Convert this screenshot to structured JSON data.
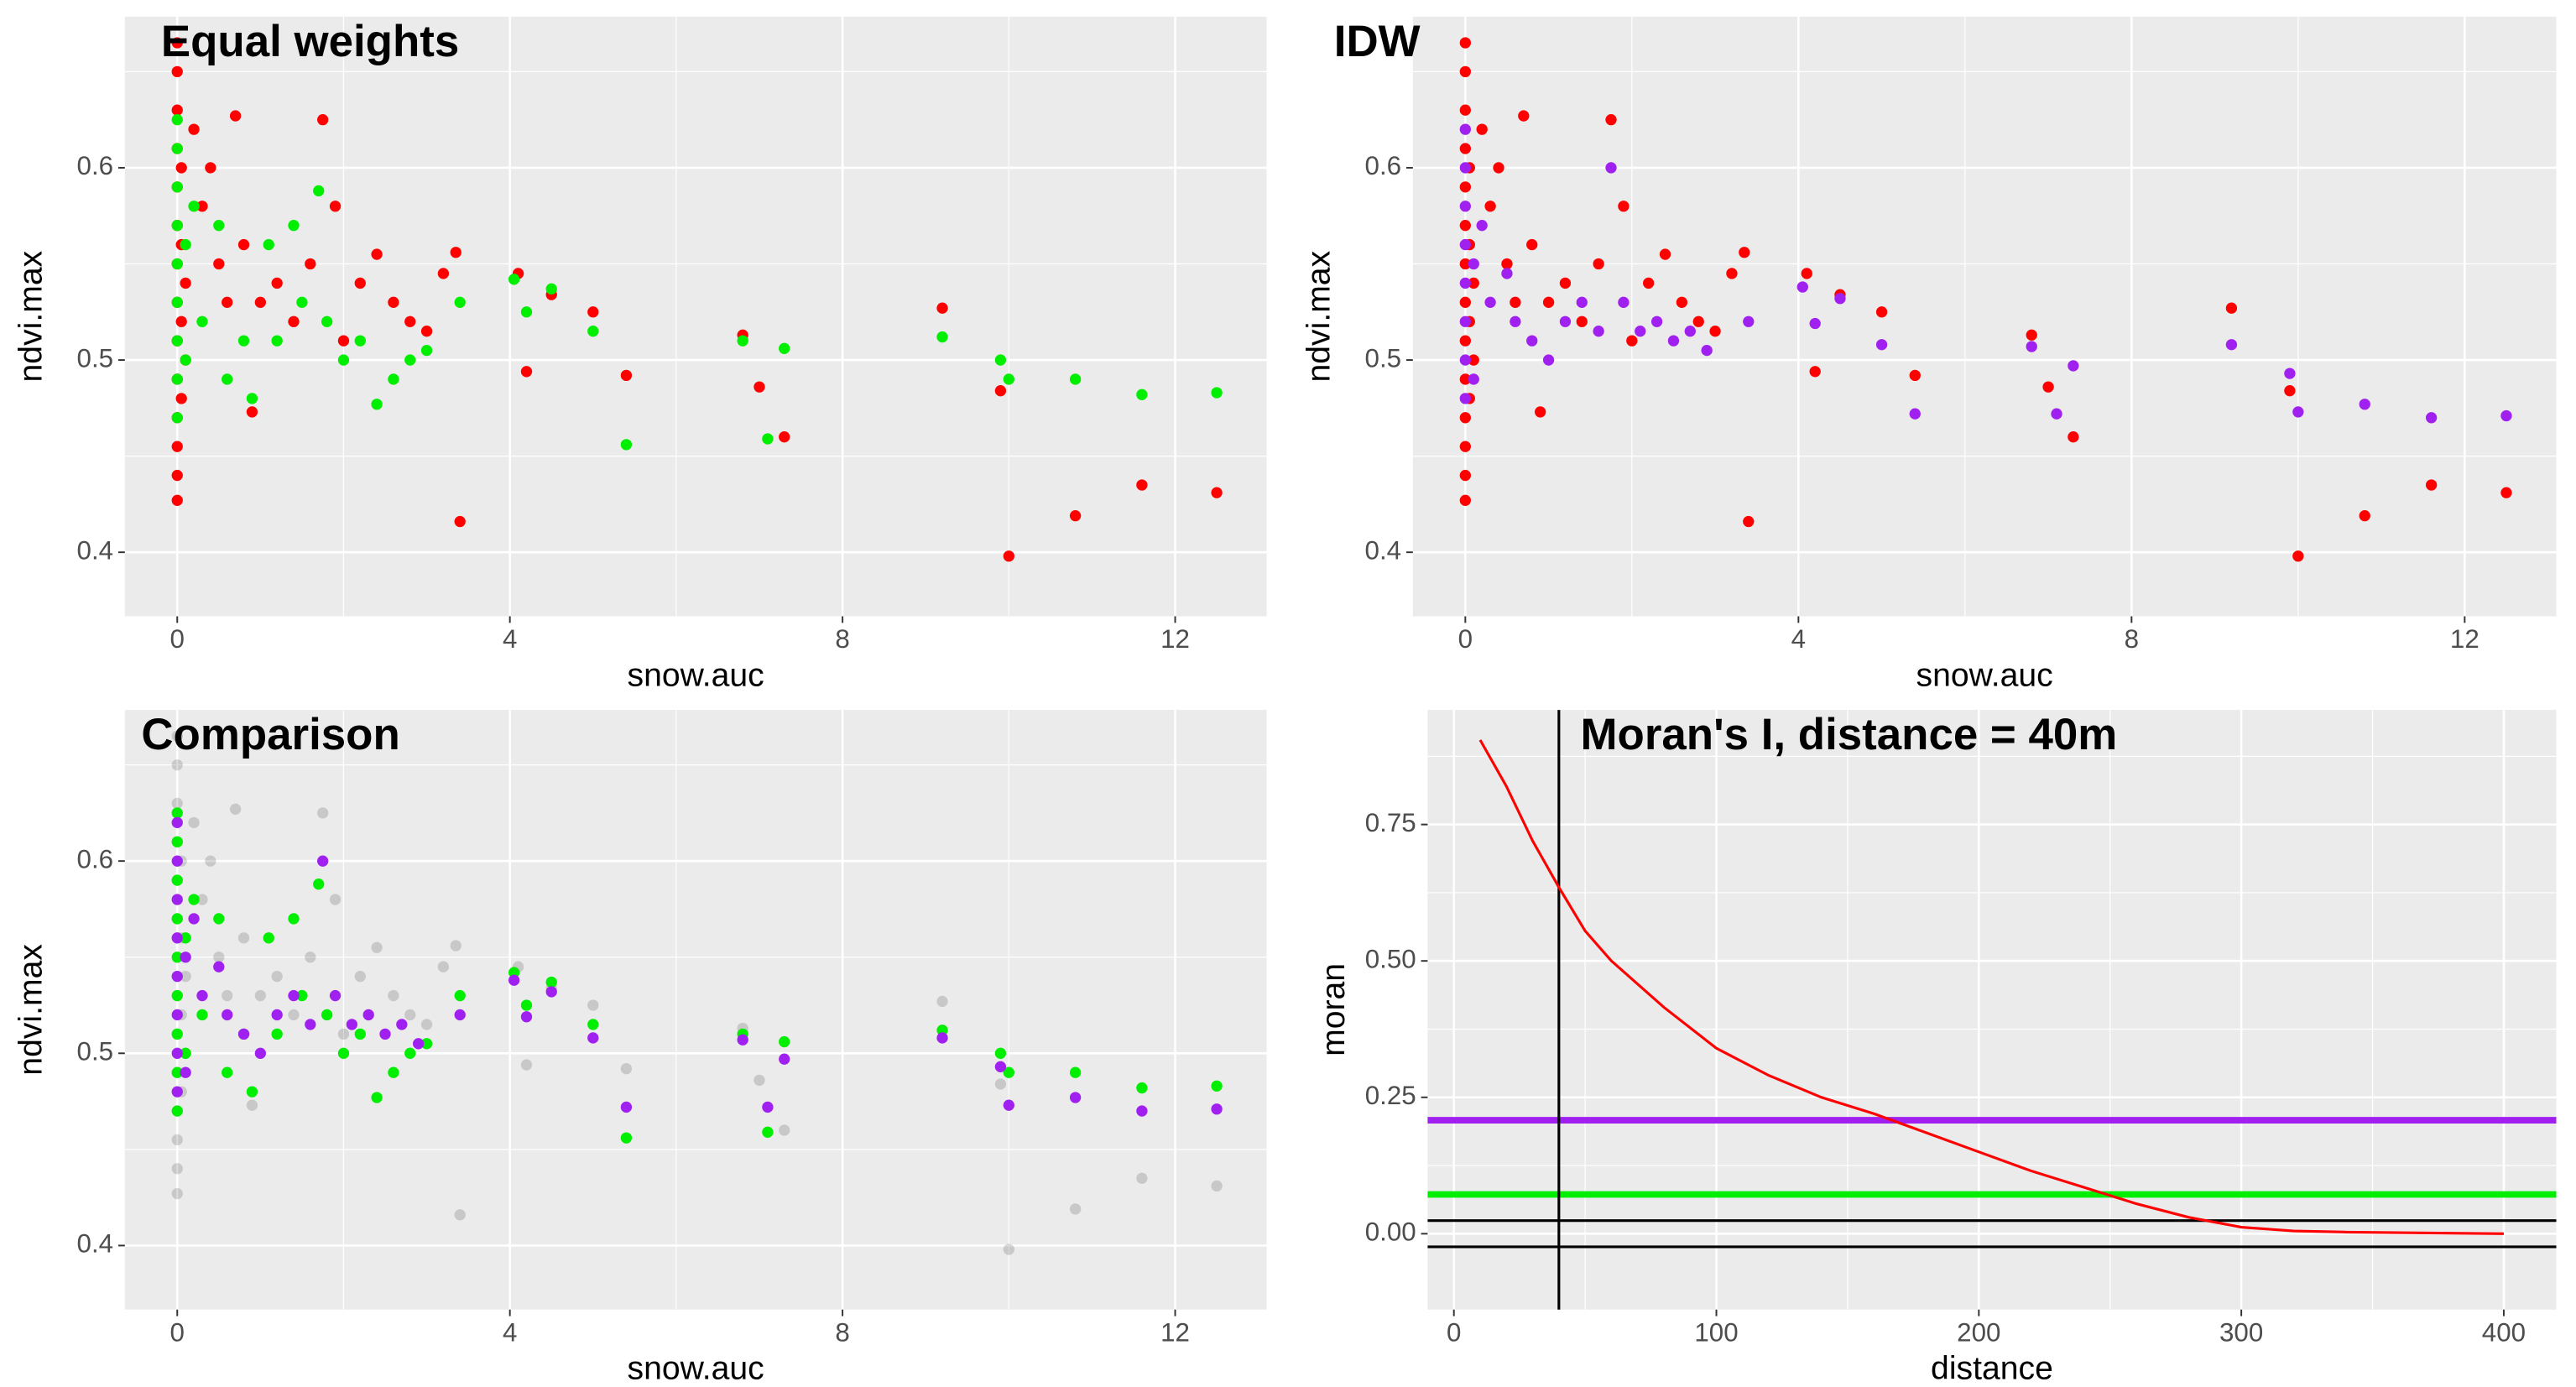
{
  "chart_data": [
    {
      "type": "scatter",
      "title": "Equal weights",
      "x_label": "snow.auc",
      "y_label": "ndvi.max",
      "xlim": [
        -0.63,
        13.1
      ],
      "ylim": [
        0.3667,
        0.6786
      ],
      "xticks": [
        0,
        4,
        8,
        12
      ],
      "yticks": [
        0.4,
        0.5,
        0.6
      ],
      "xminor": [
        2,
        6,
        10
      ],
      "yminor": [
        0.45,
        0.55,
        0.65
      ],
      "grid": true,
      "series": [
        {
          "color": "#ff0000",
          "x": [
            0,
            0,
            0,
            0,
            0,
            0,
            0,
            0,
            0,
            0,
            0,
            0,
            0,
            0,
            0.05,
            0.05,
            0.05,
            0.05,
            0.1,
            0.1,
            0.2,
            0.3,
            0.4,
            0.5,
            0.6,
            0.7,
            0.8,
            0.9,
            1.0,
            1.2,
            1.4,
            1.6,
            1.75,
            1.9,
            2.0,
            2.2,
            2.4,
            2.6,
            2.8,
            3.0,
            3.2,
            3.35,
            3.4,
            4.1,
            4.2,
            4.5,
            5.0,
            5.4,
            6.8,
            7.0,
            7.3,
            9.2,
            9.9,
            10.0,
            10.8,
            11.6,
            12.5
          ],
          "values": [
            0.427,
            0.44,
            0.455,
            0.47,
            0.49,
            0.51,
            0.53,
            0.55,
            0.57,
            0.59,
            0.61,
            0.63,
            0.65,
            0.665,
            0.48,
            0.52,
            0.56,
            0.6,
            0.5,
            0.54,
            0.62,
            0.58,
            0.6,
            0.55,
            0.53,
            0.627,
            0.56,
            0.473,
            0.53,
            0.54,
            0.52,
            0.55,
            0.625,
            0.58,
            0.51,
            0.54,
            0.555,
            0.53,
            0.52,
            0.515,
            0.545,
            0.556,
            0.416,
            0.545,
            0.494,
            0.534,
            0.525,
            0.492,
            0.513,
            0.486,
            0.46,
            0.527,
            0.484,
            0.398,
            0.419,
            0.435,
            0.431
          ]
        },
        {
          "color": "#00ee00",
          "x": [
            0,
            0,
            0,
            0,
            0,
            0,
            0,
            0,
            0,
            0.1,
            0.1,
            0.2,
            0.3,
            0.5,
            0.6,
            0.8,
            0.9,
            1.1,
            1.2,
            1.4,
            1.5,
            1.7,
            1.8,
            2.0,
            2.2,
            2.4,
            2.6,
            2.8,
            3.0,
            3.4,
            4.05,
            4.2,
            4.5,
            5.0,
            5.4,
            6.8,
            7.1,
            7.3,
            9.2,
            9.9,
            10.0,
            10.8,
            11.6,
            12.5
          ],
          "values": [
            0.47,
            0.49,
            0.51,
            0.53,
            0.55,
            0.57,
            0.59,
            0.61,
            0.625,
            0.5,
            0.56,
            0.58,
            0.52,
            0.57,
            0.49,
            0.51,
            0.48,
            0.56,
            0.51,
            0.57,
            0.53,
            0.588,
            0.52,
            0.5,
            0.51,
            0.477,
            0.49,
            0.5,
            0.505,
            0.53,
            0.542,
            0.525,
            0.537,
            0.515,
            0.456,
            0.51,
            0.459,
            0.506,
            0.512,
            0.5,
            0.49,
            0.49,
            0.482,
            0.483
          ]
        }
      ]
    },
    {
      "type": "scatter",
      "title": "IDW",
      "x_label": "snow.auc",
      "y_label": "ndvi.max",
      "xlim": [
        -0.63,
        13.1
      ],
      "ylim": [
        0.3667,
        0.6786
      ],
      "xticks": [
        0,
        4,
        8,
        12
      ],
      "yticks": [
        0.4,
        0.5,
        0.6
      ],
      "xminor": [
        2,
        6,
        10
      ],
      "yminor": [
        0.45,
        0.55,
        0.65
      ],
      "grid": true,
      "series": [
        {
          "color": "#ff0000",
          "x": [
            0,
            0,
            0,
            0,
            0,
            0,
            0,
            0,
            0,
            0,
            0,
            0,
            0,
            0,
            0.05,
            0.05,
            0.05,
            0.05,
            0.1,
            0.1,
            0.2,
            0.3,
            0.4,
            0.5,
            0.6,
            0.7,
            0.8,
            0.9,
            1.0,
            1.2,
            1.4,
            1.6,
            1.75,
            1.9,
            2.0,
            2.2,
            2.4,
            2.6,
            2.8,
            3.0,
            3.2,
            3.35,
            3.4,
            4.1,
            4.2,
            4.5,
            5.0,
            5.4,
            6.8,
            7.0,
            7.3,
            9.2,
            9.9,
            10.0,
            10.8,
            11.6,
            12.5
          ],
          "values": [
            0.427,
            0.44,
            0.455,
            0.47,
            0.49,
            0.51,
            0.53,
            0.55,
            0.57,
            0.59,
            0.61,
            0.63,
            0.65,
            0.665,
            0.48,
            0.52,
            0.56,
            0.6,
            0.5,
            0.54,
            0.62,
            0.58,
            0.6,
            0.55,
            0.53,
            0.627,
            0.56,
            0.473,
            0.53,
            0.54,
            0.52,
            0.55,
            0.625,
            0.58,
            0.51,
            0.54,
            0.555,
            0.53,
            0.52,
            0.515,
            0.545,
            0.556,
            0.416,
            0.545,
            0.494,
            0.534,
            0.525,
            0.492,
            0.513,
            0.486,
            0.46,
            0.527,
            0.484,
            0.398,
            0.419,
            0.435,
            0.431
          ]
        },
        {
          "color": "#a020f0",
          "x": [
            0,
            0,
            0,
            0,
            0,
            0,
            0,
            0,
            0.1,
            0.1,
            0.2,
            0.3,
            0.5,
            0.6,
            0.8,
            1.0,
            1.2,
            1.4,
            1.6,
            1.75,
            1.9,
            2.1,
            2.3,
            2.5,
            2.7,
            2.9,
            3.4,
            4.05,
            4.2,
            4.5,
            5.0,
            5.4,
            6.8,
            7.1,
            7.3,
            9.2,
            9.9,
            10.0,
            10.8,
            11.6,
            12.5
          ],
          "values": [
            0.48,
            0.5,
            0.52,
            0.54,
            0.56,
            0.58,
            0.6,
            0.62,
            0.49,
            0.55,
            0.57,
            0.53,
            0.545,
            0.52,
            0.51,
            0.5,
            0.52,
            0.53,
            0.515,
            0.6,
            0.53,
            0.515,
            0.52,
            0.51,
            0.515,
            0.505,
            0.52,
            0.538,
            0.519,
            0.532,
            0.508,
            0.472,
            0.507,
            0.472,
            0.497,
            0.508,
            0.493,
            0.473,
            0.477,
            0.47,
            0.471
          ]
        }
      ]
    },
    {
      "type": "scatter",
      "title": "Comparison",
      "x_label": "snow.auc",
      "y_label": "ndvi.max",
      "xlim": [
        -0.63,
        13.1
      ],
      "ylim": [
        0.3667,
        0.6786
      ],
      "xticks": [
        0,
        4,
        8,
        12
      ],
      "yticks": [
        0.4,
        0.5,
        0.6
      ],
      "xminor": [
        2,
        6,
        10
      ],
      "yminor": [
        0.45,
        0.55,
        0.65
      ],
      "grid": true,
      "series": [
        {
          "color": "#000000",
          "opacity": 0.15,
          "x": [
            0,
            0,
            0,
            0,
            0,
            0,
            0,
            0,
            0,
            0,
            0,
            0,
            0,
            0,
            0.05,
            0.05,
            0.05,
            0.05,
            0.1,
            0.1,
            0.2,
            0.3,
            0.4,
            0.5,
            0.6,
            0.7,
            0.8,
            0.9,
            1.0,
            1.2,
            1.4,
            1.6,
            1.75,
            1.9,
            2.0,
            2.2,
            2.4,
            2.6,
            2.8,
            3.0,
            3.2,
            3.35,
            3.4,
            4.1,
            4.2,
            4.5,
            5.0,
            5.4,
            6.8,
            7.0,
            7.3,
            9.2,
            9.9,
            10.0,
            10.8,
            11.6,
            12.5
          ],
          "values": [
            0.427,
            0.44,
            0.455,
            0.47,
            0.49,
            0.51,
            0.53,
            0.55,
            0.57,
            0.59,
            0.61,
            0.63,
            0.65,
            0.665,
            0.48,
            0.52,
            0.56,
            0.6,
            0.5,
            0.54,
            0.62,
            0.58,
            0.6,
            0.55,
            0.53,
            0.627,
            0.56,
            0.473,
            0.53,
            0.54,
            0.52,
            0.55,
            0.625,
            0.58,
            0.51,
            0.54,
            0.555,
            0.53,
            0.52,
            0.515,
            0.545,
            0.556,
            0.416,
            0.545,
            0.494,
            0.534,
            0.525,
            0.492,
            0.513,
            0.486,
            0.46,
            0.527,
            0.484,
            0.398,
            0.419,
            0.435,
            0.431
          ]
        },
        {
          "color": "#00ee00",
          "x": [
            0,
            0,
            0,
            0,
            0,
            0,
            0,
            0,
            0,
            0.1,
            0.1,
            0.2,
            0.3,
            0.5,
            0.6,
            0.8,
            0.9,
            1.1,
            1.2,
            1.4,
            1.5,
            1.7,
            1.8,
            2.0,
            2.2,
            2.4,
            2.6,
            2.8,
            3.0,
            3.4,
            4.05,
            4.2,
            4.5,
            5.0,
            5.4,
            6.8,
            7.1,
            7.3,
            9.2,
            9.9,
            10.0,
            10.8,
            11.6,
            12.5
          ],
          "values": [
            0.47,
            0.49,
            0.51,
            0.53,
            0.55,
            0.57,
            0.59,
            0.61,
            0.625,
            0.5,
            0.56,
            0.58,
            0.52,
            0.57,
            0.49,
            0.51,
            0.48,
            0.56,
            0.51,
            0.57,
            0.53,
            0.588,
            0.52,
            0.5,
            0.51,
            0.477,
            0.49,
            0.5,
            0.505,
            0.53,
            0.542,
            0.525,
            0.537,
            0.515,
            0.456,
            0.51,
            0.459,
            0.506,
            0.512,
            0.5,
            0.49,
            0.49,
            0.482,
            0.483
          ]
        },
        {
          "color": "#a020f0",
          "x": [
            0,
            0,
            0,
            0,
            0,
            0,
            0,
            0,
            0.1,
            0.1,
            0.2,
            0.3,
            0.5,
            0.6,
            0.8,
            1.0,
            1.2,
            1.4,
            1.6,
            1.75,
            1.9,
            2.1,
            2.3,
            2.5,
            2.7,
            2.9,
            3.4,
            4.05,
            4.2,
            4.5,
            5.0,
            5.4,
            6.8,
            7.1,
            7.3,
            9.2,
            9.9,
            10.0,
            10.8,
            11.6,
            12.5
          ],
          "values": [
            0.48,
            0.5,
            0.52,
            0.54,
            0.56,
            0.58,
            0.6,
            0.62,
            0.49,
            0.55,
            0.57,
            0.53,
            0.545,
            0.52,
            0.51,
            0.5,
            0.52,
            0.53,
            0.515,
            0.6,
            0.53,
            0.515,
            0.52,
            0.51,
            0.515,
            0.505,
            0.52,
            0.538,
            0.519,
            0.532,
            0.508,
            0.472,
            0.507,
            0.472,
            0.497,
            0.508,
            0.493,
            0.473,
            0.477,
            0.47,
            0.471
          ]
        }
      ]
    },
    {
      "type": "line",
      "title": "Moran's I, distance = 40m",
      "x_label": "distance",
      "y_label": "moran",
      "xlim": [
        -10,
        420
      ],
      "ylim": [
        -0.139,
        0.96
      ],
      "xticks": [
        0,
        100,
        200,
        300,
        400
      ],
      "yticks": [
        {
          "value": 0,
          "label": "0.00"
        },
        0.25,
        {
          "value": 0.5,
          "label": "0.50"
        },
        0.75
      ],
      "xminor": [
        50,
        150,
        250,
        350
      ],
      "yminor": [
        0.125,
        0.375,
        0.625,
        0.875
      ],
      "grid": true,
      "series": [
        {
          "color": "#ff0000",
          "x": [
            10,
            20,
            30,
            40,
            50,
            60,
            80,
            100,
            120,
            140,
            160,
            180,
            200,
            220,
            240,
            260,
            280,
            300,
            320,
            340,
            360,
            380,
            400
          ],
          "values": [
            0.905,
            0.82,
            0.72,
            0.635,
            0.555,
            0.5,
            0.415,
            0.34,
            0.29,
            0.25,
            0.22,
            0.185,
            0.15,
            0.115,
            0.085,
            0.055,
            0.03,
            0.012,
            0.005,
            0.003,
            0.002,
            0.001,
            0.0
          ]
        }
      ],
      "hlines": [
        {
          "value": 0.208,
          "color": "#a020f0"
        },
        {
          "value": 0.072,
          "color": "#00ee00"
        },
        {
          "value": 0.024,
          "color": "#000000"
        },
        {
          "value": -0.024,
          "color": "#000000"
        }
      ],
      "vlines": [
        {
          "value": 40,
          "color": "#000000"
        }
      ]
    }
  ]
}
